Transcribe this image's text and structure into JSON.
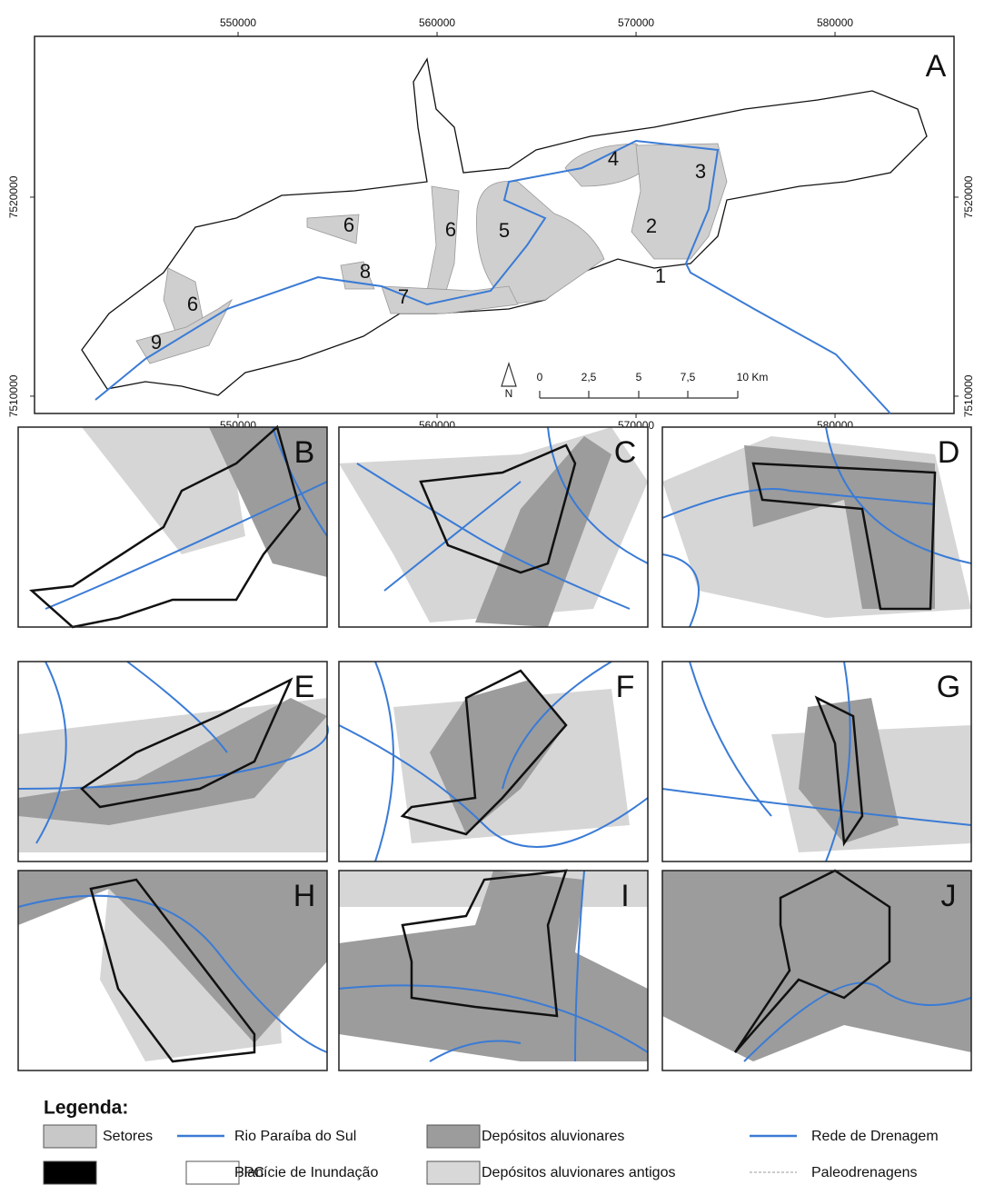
{
  "map": {
    "panel_label": "A",
    "xlim": [
      539770,
      585980
    ],
    "ylim": [
      7509130,
      7528080
    ],
    "xticks": [
      550000,
      560000,
      570000,
      580000
    ],
    "yticks": [
      7510000,
      7520000
    ],
    "sector_labels": [
      "1",
      "2",
      "3",
      "4",
      "5",
      "6",
      "6",
      "6",
      "7",
      "8",
      "9"
    ],
    "scale_labels": [
      "0",
      "2,5",
      "5",
      "7,5",
      "10 Km"
    ],
    "north": "N"
  },
  "panels": [
    "B",
    "C",
    "D",
    "E",
    "F",
    "G",
    "H",
    "I",
    "J"
  ],
  "legend": {
    "title": "Legenda:",
    "items": [
      "Setores",
      "SPC",
      "Rio Paraíba do Sul",
      "Planície de Inundação",
      "Depósitos aluvionares",
      "Depósitos aluvionares antigos",
      "Rede de Drenagem",
      "Paleodrenagens"
    ]
  }
}
